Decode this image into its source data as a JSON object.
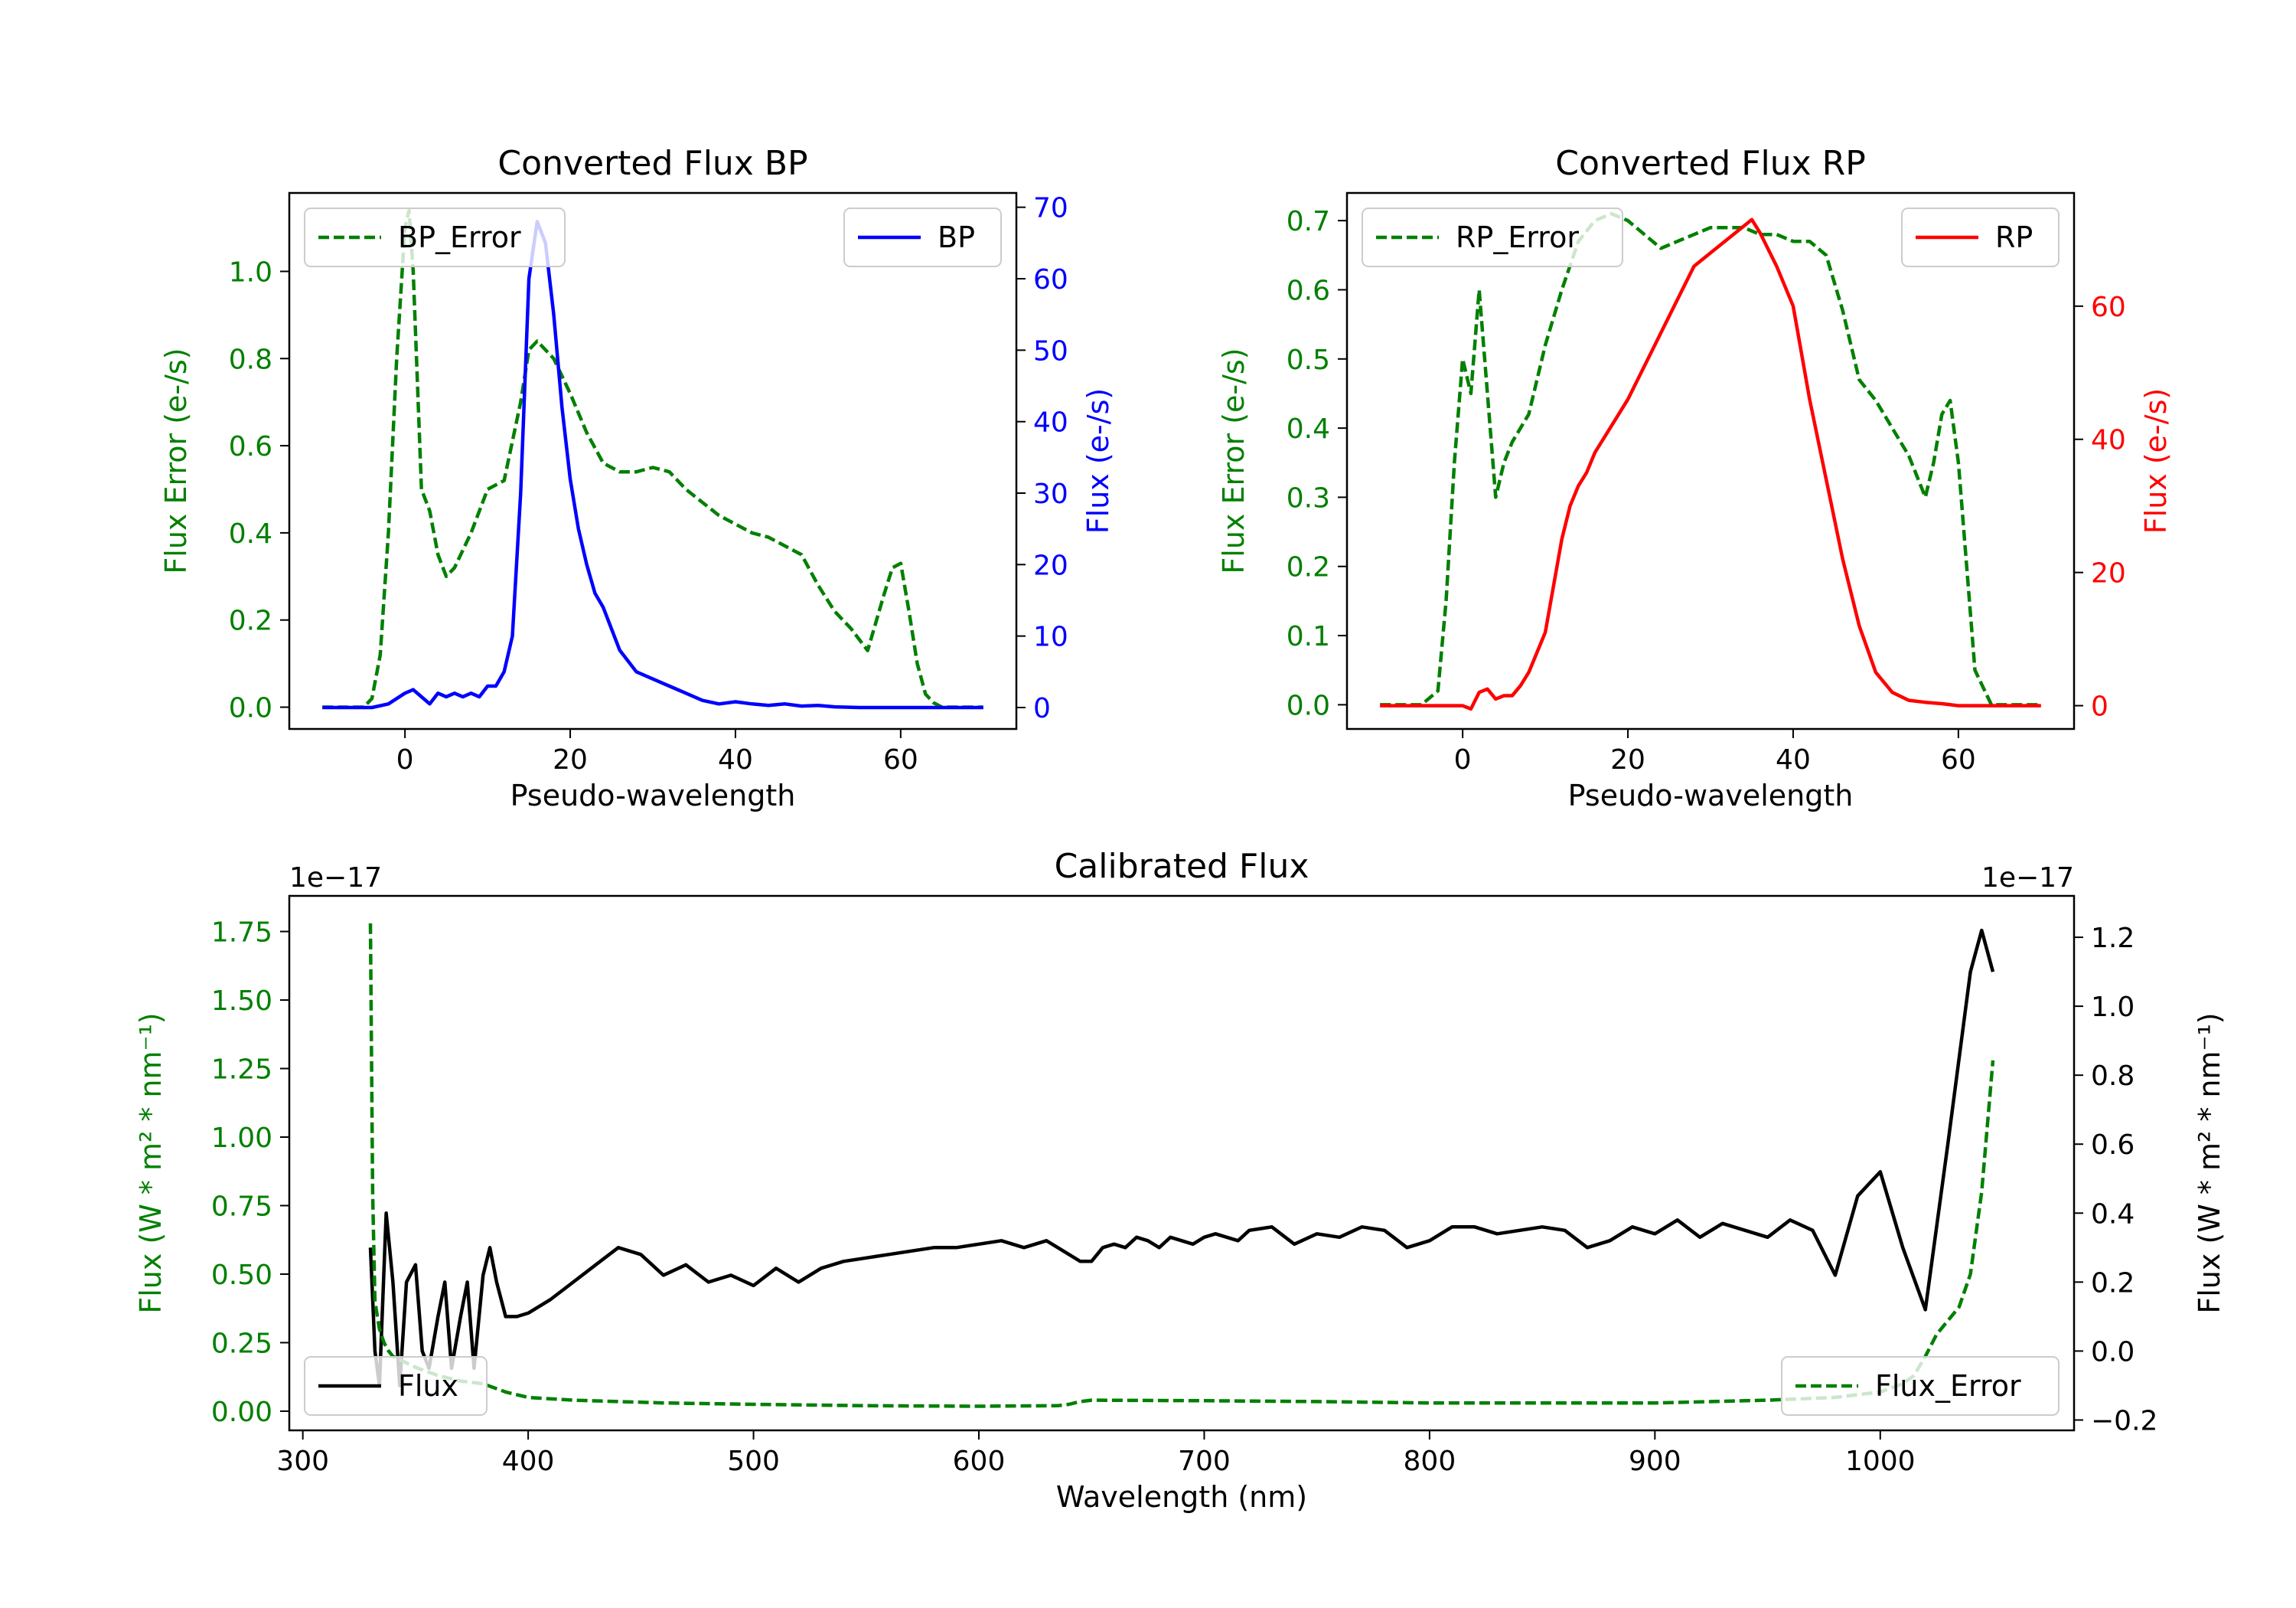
{
  "figure": {
    "background": "#ffffff"
  },
  "chart_data": [
    {
      "id": "bp",
      "type": "line",
      "title": "Converted Flux BP",
      "xlabel": "Pseudo-wavelength",
      "xlim": [
        -14,
        74
      ],
      "xticks": [
        0,
        20,
        40,
        60
      ],
      "left_axis": {
        "label": "Flux Error (e-/s)",
        "color": "#008000",
        "ylim": [
          -0.05,
          1.18
        ],
        "ticks": [
          "0.0",
          "0.2",
          "0.4",
          "0.6",
          "0.8",
          "1.0"
        ]
      },
      "right_axis": {
        "label": "Flux (e-/s)",
        "color": "#0000ff",
        "ylim": [
          -3,
          72
        ],
        "ticks": [
          "0",
          "10",
          "20",
          "30",
          "40",
          "50",
          "60",
          "70"
        ]
      },
      "series": [
        {
          "name": "BP_Error",
          "axis": "left",
          "color": "#008000",
          "style": "dashed",
          "x": [
            -10,
            -5,
            -4,
            -3,
            -2,
            -1,
            0,
            0.5,
            1,
            2,
            3,
            4,
            5,
            6,
            8,
            10,
            12,
            14,
            15,
            16,
            18,
            20,
            22,
            24,
            26,
            28,
            30,
            32,
            34,
            36,
            38,
            40,
            42,
            44,
            46,
            48,
            50,
            52,
            54,
            56,
            58,
            59,
            60,
            61,
            62,
            63,
            64,
            65,
            66,
            67,
            68,
            70
          ],
          "y": [
            0,
            0,
            0.02,
            0.12,
            0.4,
            0.8,
            1.1,
            1.14,
            1.0,
            0.5,
            0.45,
            0.35,
            0.3,
            0.32,
            0.4,
            0.5,
            0.52,
            0.7,
            0.82,
            0.84,
            0.8,
            0.72,
            0.63,
            0.56,
            0.54,
            0.54,
            0.55,
            0.54,
            0.5,
            0.47,
            0.44,
            0.42,
            0.4,
            0.39,
            0.37,
            0.35,
            0.28,
            0.22,
            0.18,
            0.13,
            0.26,
            0.32,
            0.33,
            0.22,
            0.1,
            0.03,
            0.01,
            0,
            0,
            0,
            0,
            0
          ]
        },
        {
          "name": "BP",
          "axis": "right",
          "color": "#0000ff",
          "style": "solid",
          "x": [
            -10,
            -4,
            -2,
            0,
            1,
            2,
            3,
            4,
            5,
            6,
            7,
            8,
            9,
            10,
            11,
            12,
            13,
            14,
            15,
            16,
            17,
            18,
            19,
            20,
            21,
            22,
            23,
            24,
            26,
            28,
            30,
            32,
            34,
            36,
            38,
            40,
            42,
            44,
            46,
            48,
            50,
            52,
            55,
            60,
            70
          ],
          "y": [
            0,
            0,
            0.5,
            2,
            2.5,
            1.5,
            0.5,
            2,
            1.5,
            2,
            1.5,
            2,
            1.5,
            3,
            3,
            5,
            10,
            30,
            60,
            68,
            65,
            55,
            42,
            32,
            25,
            20,
            16,
            14,
            8,
            5,
            4,
            3,
            2,
            1,
            0.5,
            0.8,
            0.5,
            0.3,
            0.5,
            0.2,
            0.3,
            0.1,
            0,
            0,
            0
          ]
        }
      ],
      "legend": [
        {
          "label": "BP_Error",
          "placement": "upper-left"
        },
        {
          "label": "BP",
          "placement": "upper-right"
        }
      ]
    },
    {
      "id": "rp",
      "type": "line",
      "title": "Converted Flux RP",
      "xlabel": "Pseudo-wavelength",
      "xlim": [
        -14,
        74
      ],
      "xticks": [
        0,
        20,
        40,
        60
      ],
      "left_axis": {
        "label": "Flux Error (e-/s)",
        "color": "#008000",
        "ylim": [
          -0.035,
          0.74
        ],
        "ticks": [
          "0.0",
          "0.1",
          "0.2",
          "0.3",
          "0.4",
          "0.5",
          "0.6",
          "0.7"
        ]
      },
      "right_axis": {
        "label": "Flux (e-/s)",
        "color": "#ff0000",
        "ylim": [
          -3.5,
          77
        ],
        "ticks": [
          "0",
          "20",
          "40",
          "60"
        ]
      },
      "series": [
        {
          "name": "RP_Error",
          "axis": "left",
          "color": "#008000",
          "style": "dashed",
          "x": [
            -10,
            -5,
            -3,
            -2,
            -1,
            0,
            1,
            2,
            3,
            4,
            5,
            6,
            8,
            10,
            12,
            14,
            16,
            18,
            20,
            22,
            24,
            26,
            28,
            30,
            32,
            34,
            36,
            38,
            40,
            42,
            44,
            46,
            48,
            50,
            52,
            54,
            56,
            57,
            58,
            59,
            60,
            61,
            62,
            64,
            66,
            68,
            70
          ],
          "y": [
            0,
            0,
            0.02,
            0.15,
            0.35,
            0.5,
            0.45,
            0.6,
            0.45,
            0.3,
            0.35,
            0.38,
            0.42,
            0.52,
            0.6,
            0.67,
            0.7,
            0.71,
            0.7,
            0.68,
            0.66,
            0.67,
            0.68,
            0.69,
            0.69,
            0.69,
            0.68,
            0.68,
            0.67,
            0.67,
            0.65,
            0.57,
            0.47,
            0.44,
            0.4,
            0.36,
            0.3,
            0.35,
            0.42,
            0.44,
            0.35,
            0.2,
            0.05,
            0,
            0,
            0,
            0
          ]
        },
        {
          "name": "RP",
          "axis": "right",
          "color": "#ff0000",
          "style": "solid",
          "x": [
            -10,
            -4,
            -2,
            0,
            1,
            2,
            3,
            4,
            5,
            6,
            7,
            8,
            9,
            10,
            11,
            12,
            13,
            14,
            15,
            16,
            18,
            20,
            22,
            24,
            26,
            28,
            30,
            32,
            34,
            35,
            36,
            38,
            40,
            42,
            44,
            46,
            48,
            50,
            52,
            54,
            56,
            58,
            60,
            62,
            70
          ],
          "y": [
            0,
            0,
            0,
            0,
            -0.5,
            2,
            2.5,
            1,
            1.5,
            1.5,
            3,
            5,
            8,
            11,
            18,
            25,
            30,
            33,
            35,
            38,
            42,
            46,
            51,
            56,
            61,
            66,
            68,
            70,
            72,
            73,
            71,
            66,
            60,
            46,
            34,
            22,
            12,
            5,
            2,
            0.8,
            0.5,
            0.3,
            0,
            0,
            0
          ]
        }
      ],
      "legend": [
        {
          "label": "RP_Error",
          "placement": "upper-left"
        },
        {
          "label": "RP",
          "placement": "upper-right"
        }
      ]
    },
    {
      "id": "cal",
      "type": "line",
      "title": "Calibrated Flux",
      "xlabel": "Wavelength (nm)",
      "xlim": [
        294,
        1086
      ],
      "xticks": [
        300,
        400,
        500,
        600,
        700,
        800,
        900,
        1000
      ],
      "left_axis": {
        "label": "Flux (W * m² * nm⁻¹)",
        "color": "#008000",
        "ylim": [
          -0.07,
          1.88
        ],
        "ticks": [
          "0.00",
          "0.25",
          "0.50",
          "0.75",
          "1.00",
          "1.25",
          "1.50",
          "1.75"
        ],
        "offset": "1e−17"
      },
      "right_axis": {
        "label": "Flux (W * m² * nm⁻¹)",
        "color": "#000000",
        "ylim": [
          -0.23,
          1.32
        ],
        "ticks": [
          "−0.2",
          "0.0",
          "0.2",
          "0.4",
          "0.6",
          "0.8",
          "1.0",
          "1.2"
        ],
        "offset": "1e−17"
      },
      "series": [
        {
          "name": "Flux",
          "axis": "right",
          "color": "#000000",
          "style": "solid",
          "x": [
            330,
            332,
            334,
            337,
            340,
            343,
            346,
            350,
            353,
            356,
            360,
            363,
            366,
            370,
            373,
            376,
            380,
            383,
            386,
            390,
            395,
            400,
            410,
            420,
            430,
            440,
            450,
            460,
            470,
            480,
            490,
            500,
            510,
            520,
            530,
            540,
            550,
            560,
            570,
            580,
            590,
            600,
            610,
            620,
            630,
            635,
            640,
            645,
            650,
            655,
            660,
            665,
            670,
            675,
            680,
            685,
            690,
            695,
            700,
            705,
            710,
            715,
            720,
            730,
            740,
            750,
            760,
            770,
            780,
            790,
            800,
            810,
            820,
            830,
            840,
            850,
            860,
            870,
            880,
            890,
            900,
            910,
            920,
            930,
            940,
            950,
            960,
            970,
            980,
            990,
            1000,
            1010,
            1020,
            1030,
            1040,
            1045,
            1050
          ],
          "y": [
            0.3,
            0.0,
            -0.1,
            0.4,
            0.2,
            -0.1,
            0.2,
            0.25,
            0.0,
            -0.05,
            0.1,
            0.2,
            -0.05,
            0.1,
            0.2,
            -0.05,
            0.22,
            0.3,
            0.2,
            0.1,
            0.1,
            0.11,
            0.15,
            0.2,
            0.25,
            0.3,
            0.28,
            0.22,
            0.25,
            0.2,
            0.22,
            0.19,
            0.24,
            0.2,
            0.24,
            0.26,
            0.27,
            0.28,
            0.29,
            0.3,
            0.3,
            0.31,
            0.32,
            0.3,
            0.32,
            0.3,
            0.28,
            0.26,
            0.26,
            0.3,
            0.31,
            0.3,
            0.33,
            0.32,
            0.3,
            0.33,
            0.32,
            0.31,
            0.33,
            0.34,
            0.33,
            0.32,
            0.35,
            0.36,
            0.31,
            0.34,
            0.33,
            0.36,
            0.35,
            0.3,
            0.32,
            0.36,
            0.36,
            0.34,
            0.35,
            0.36,
            0.35,
            0.3,
            0.32,
            0.36,
            0.34,
            0.38,
            0.33,
            0.37,
            0.35,
            0.33,
            0.38,
            0.35,
            0.22,
            0.45,
            0.52,
            0.3,
            0.12,
            0.6,
            1.1,
            1.22,
            1.1
          ]
        },
        {
          "name": "Flux_Error",
          "axis": "left",
          "color": "#008000",
          "style": "dashed",
          "x": [
            330,
            331,
            332,
            334,
            336,
            338,
            340,
            345,
            350,
            360,
            370,
            380,
            390,
            400,
            420,
            440,
            460,
            500,
            550,
            600,
            635,
            640,
            645,
            650,
            700,
            750,
            800,
            850,
            900,
            950,
            980,
            1000,
            1010,
            1015,
            1020,
            1025,
            1030,
            1035,
            1040,
            1045,
            1050
          ],
          "y": [
            1.78,
            0.8,
            0.4,
            0.3,
            0.25,
            0.22,
            0.2,
            0.18,
            0.16,
            0.13,
            0.11,
            0.1,
            0.07,
            0.05,
            0.04,
            0.035,
            0.03,
            0.025,
            0.02,
            0.018,
            0.02,
            0.025,
            0.035,
            0.04,
            0.038,
            0.035,
            0.03,
            0.03,
            0.03,
            0.04,
            0.05,
            0.07,
            0.1,
            0.13,
            0.2,
            0.28,
            0.33,
            0.38,
            0.5,
            0.8,
            1.28
          ]
        }
      ],
      "legend": [
        {
          "label": "Flux",
          "placement": "lower-left"
        },
        {
          "label": "Flux_Error",
          "placement": "lower-right"
        }
      ]
    }
  ]
}
